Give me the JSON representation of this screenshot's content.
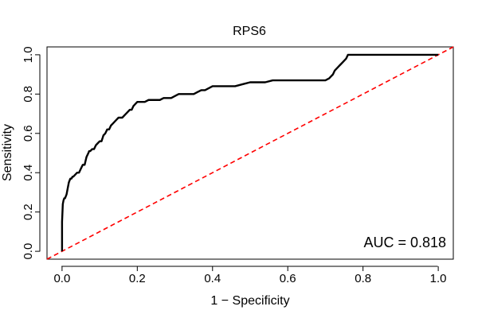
{
  "chart_data": {
    "type": "line",
    "title": "RPS6",
    "xlabel": "1 − Specificity",
    "ylabel": "Sensitivity",
    "xlim": [
      -0.04,
      1.04
    ],
    "ylim": [
      -0.04,
      1.04
    ],
    "xticks": [
      0.0,
      0.2,
      0.4,
      0.6,
      0.8,
      1.0
    ],
    "yticks": [
      0.0,
      0.2,
      0.4,
      0.6,
      0.8,
      1.0
    ],
    "xtick_labels": [
      "0.0",
      "0.2",
      "0.4",
      "0.6",
      "0.8",
      "1.0"
    ],
    "ytick_labels": [
      "0.0",
      "0.2",
      "0.4",
      "0.6",
      "0.8",
      "1.0"
    ],
    "annotation": "AUC = 0.818",
    "auc": 0.818,
    "series": [
      {
        "name": "ROC curve",
        "color": "#000000",
        "style": "solid",
        "x": [
          0.0,
          0.0,
          0.002,
          0.004,
          0.006,
          0.008,
          0.012,
          0.015,
          0.018,
          0.02,
          0.022,
          0.025,
          0.028,
          0.03,
          0.035,
          0.04,
          0.045,
          0.05,
          0.055,
          0.06,
          0.065,
          0.07,
          0.072,
          0.075,
          0.08,
          0.085,
          0.09,
          0.095,
          0.1,
          0.105,
          0.11,
          0.115,
          0.12,
          0.125,
          0.13,
          0.135,
          0.14,
          0.145,
          0.15,
          0.16,
          0.17,
          0.18,
          0.185,
          0.19,
          0.195,
          0.2,
          0.21,
          0.22,
          0.23,
          0.24,
          0.25,
          0.26,
          0.27,
          0.28,
          0.29,
          0.3,
          0.31,
          0.32,
          0.33,
          0.34,
          0.35,
          0.36,
          0.37,
          0.38,
          0.39,
          0.4,
          0.42,
          0.44,
          0.46,
          0.48,
          0.5,
          0.52,
          0.54,
          0.56,
          0.58,
          0.6,
          0.62,
          0.64,
          0.66,
          0.68,
          0.7,
          0.71,
          0.715,
          0.72,
          0.725,
          0.73,
          0.735,
          0.74,
          0.745,
          0.75,
          0.755,
          0.76,
          0.8,
          0.9,
          1.0
        ],
        "y": [
          0.0,
          0.15,
          0.24,
          0.26,
          0.27,
          0.27,
          0.29,
          0.32,
          0.35,
          0.36,
          0.37,
          0.37,
          0.38,
          0.38,
          0.39,
          0.4,
          0.4,
          0.42,
          0.44,
          0.44,
          0.48,
          0.5,
          0.51,
          0.51,
          0.52,
          0.52,
          0.54,
          0.55,
          0.56,
          0.56,
          0.59,
          0.6,
          0.62,
          0.62,
          0.64,
          0.65,
          0.66,
          0.67,
          0.68,
          0.68,
          0.7,
          0.72,
          0.72,
          0.74,
          0.75,
          0.76,
          0.76,
          0.76,
          0.77,
          0.77,
          0.77,
          0.77,
          0.78,
          0.78,
          0.78,
          0.79,
          0.8,
          0.8,
          0.8,
          0.8,
          0.8,
          0.81,
          0.82,
          0.82,
          0.83,
          0.84,
          0.84,
          0.84,
          0.84,
          0.85,
          0.86,
          0.86,
          0.86,
          0.87,
          0.87,
          0.87,
          0.87,
          0.87,
          0.87,
          0.87,
          0.87,
          0.88,
          0.89,
          0.9,
          0.92,
          0.93,
          0.94,
          0.95,
          0.96,
          0.97,
          0.98,
          1.0,
          1.0,
          1.0,
          1.0
        ]
      },
      {
        "name": "Reference diagonal",
        "color": "#ff0000",
        "style": "dashed",
        "x": [
          -0.04,
          1.04
        ],
        "y": [
          -0.04,
          1.04
        ]
      }
    ]
  }
}
